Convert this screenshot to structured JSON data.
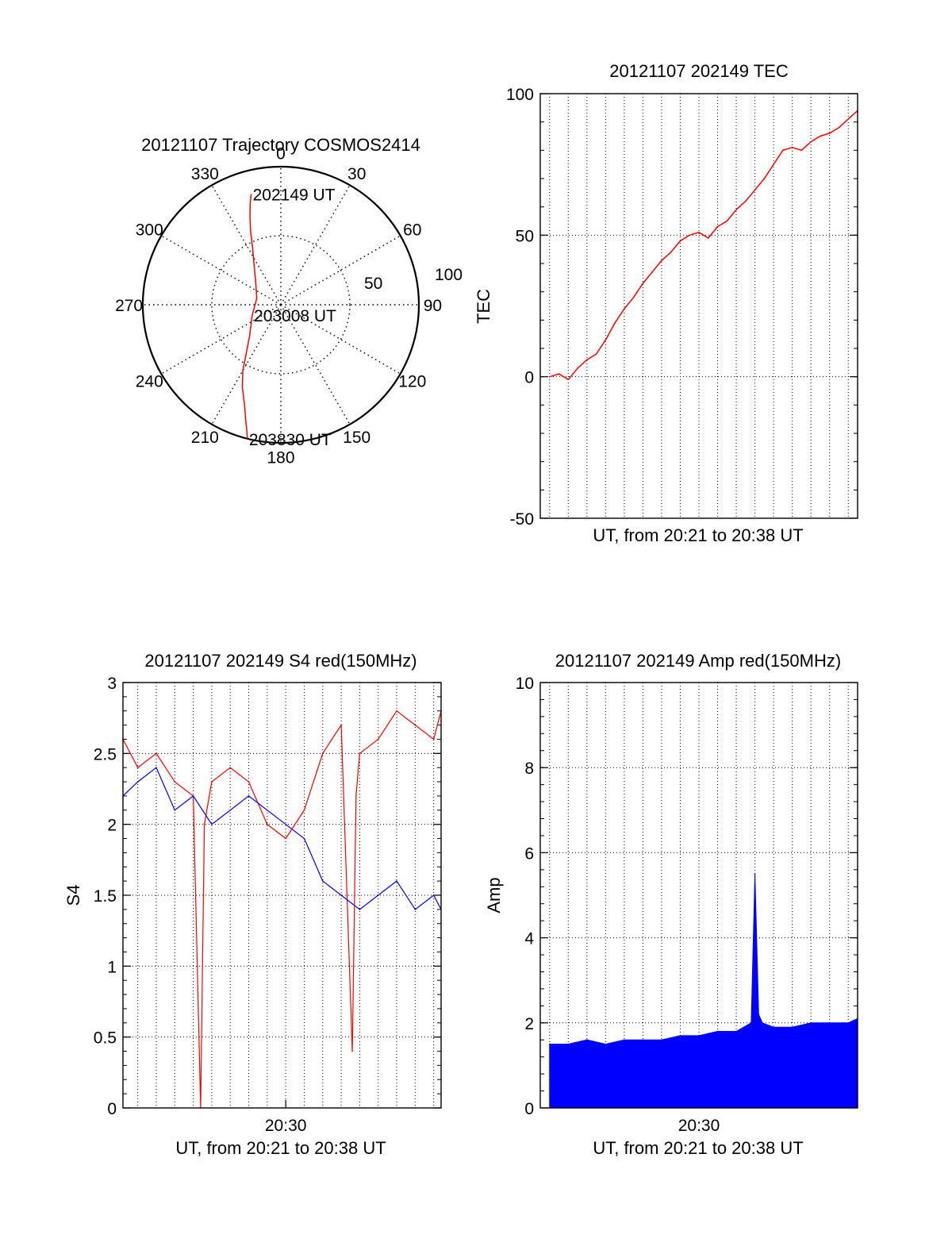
{
  "colors": {
    "red": "#ff0000",
    "blue": "#0000ff",
    "axis": "#000000",
    "grid": "#000000"
  },
  "chart_data": [
    {
      "id": "trajectory",
      "type": "polar",
      "title": "20121107 Trajectory COSMOS2414",
      "angle_labels": [
        "0",
        "30",
        "60",
        "90",
        "120",
        "150",
        "180",
        "210",
        "240",
        "270",
        "300",
        "330"
      ],
      "radial_labels": [
        "50",
        "100"
      ],
      "radial_ticks": [
        50,
        100
      ],
      "r_max": 100,
      "track": {
        "azimuth_deg": [
          -15,
          -17,
          -19.5,
          -22.5,
          -26,
          -32,
          -45,
          -75,
          -110,
          -135,
          -145,
          -150,
          -155,
          -160,
          -163,
          -165,
          -166
        ],
        "radius": [
          83,
          76,
          67,
          57,
          47,
          37,
          26,
          18,
          22,
          32,
          44,
          55,
          66,
          77,
          87,
          95,
          100
        ]
      },
      "annotations": [
        {
          "text": "202149 UT",
          "azimuth_deg": -15,
          "radius": 83
        },
        {
          "text": "203008 UT",
          "azimuth_deg": -110,
          "radius": 22
        },
        {
          "text": "203830 UT",
          "azimuth_deg": -166,
          "radius": 100
        }
      ]
    },
    {
      "id": "tec",
      "type": "line",
      "title": "20121107 202149 TEC",
      "xlabel": "UT, from 20:21 to 20:38 UT",
      "ylabel": "TEC",
      "ylim": [
        -50,
        100
      ],
      "yticks": [
        "-50",
        "0",
        "50",
        "100"
      ],
      "xlim_min": [
        21.5,
        38.5
      ],
      "x_gridlines_min": [
        22,
        23,
        24,
        25,
        26,
        27,
        28,
        29,
        30,
        31,
        32,
        33,
        34,
        35,
        36,
        37,
        38
      ],
      "grid": true,
      "series": [
        {
          "color": "#ff0000",
          "x_min": [
            22.0,
            22.5,
            23.0,
            23.5,
            24.0,
            24.5,
            25.0,
            25.5,
            26.0,
            26.5,
            27.0,
            27.5,
            28.0,
            28.5,
            29.0,
            29.5,
            30.0,
            30.5,
            31.0,
            31.5,
            32.0,
            32.5,
            33.0,
            33.5,
            34.0,
            34.5,
            35.0,
            35.5,
            36.0,
            36.5,
            37.0,
            37.5,
            38.0,
            38.5
          ],
          "y": [
            0,
            1,
            -1,
            3,
            6,
            8,
            13,
            19,
            24,
            28,
            33,
            37,
            41,
            44,
            48,
            50,
            51,
            49,
            53,
            55,
            59,
            62,
            66,
            70,
            75,
            80,
            81,
            80,
            83,
            85,
            86,
            88,
            91,
            94
          ]
        }
      ]
    },
    {
      "id": "s4",
      "type": "line",
      "title": "20121107 202149 S4 red(150MHz)",
      "xlabel": "UT, from 20:21 to 20:38 UT",
      "ylabel": "S4",
      "ylim": [
        0,
        3
      ],
      "yticks": [
        "0",
        "0.5",
        "1",
        "1.5",
        "2",
        "2.5",
        "3"
      ],
      "xlim_min": [
        21.2,
        38.4
      ],
      "xtick_label": "20:30",
      "xtick_min": 30,
      "x_gridlines_min": [
        22,
        23,
        24,
        25,
        26,
        27,
        28,
        29,
        30,
        31,
        32,
        33,
        34,
        35,
        36,
        37,
        38
      ],
      "grid": true,
      "series": [
        {
          "color": "#ff0000",
          "x_min": [
            21.2,
            22.0,
            23.0,
            24.0,
            25.0,
            25.4,
            25.6,
            26.0,
            27.0,
            28.0,
            29.0,
            30.0,
            31.0,
            32.0,
            33.0,
            33.6,
            33.8,
            34.0,
            35.0,
            36.0,
            37.0,
            38.0,
            38.4
          ],
          "y": [
            2.6,
            2.4,
            2.5,
            2.3,
            2.2,
            0.0,
            2.0,
            2.3,
            2.4,
            2.3,
            2.0,
            1.9,
            2.1,
            2.5,
            2.7,
            0.4,
            2.2,
            2.5,
            2.6,
            2.8,
            2.7,
            2.6,
            2.8
          ]
        },
        {
          "color": "#0000ff",
          "x_min": [
            21.2,
            22.0,
            23.0,
            24.0,
            25.0,
            26.0,
            27.0,
            28.0,
            29.0,
            30.0,
            31.0,
            32.0,
            33.0,
            34.0,
            35.0,
            36.0,
            37.0,
            38.0,
            38.4
          ],
          "y": [
            2.2,
            2.3,
            2.4,
            2.1,
            2.2,
            2.0,
            2.1,
            2.2,
            2.1,
            2.0,
            1.9,
            1.6,
            1.5,
            1.4,
            1.5,
            1.6,
            1.4,
            1.5,
            1.4
          ]
        }
      ]
    },
    {
      "id": "amp",
      "type": "area",
      "title": "20121107 202149 Amp red(150MHz)",
      "xlabel": "UT, from 20:21 to 20:38 UT",
      "ylabel": "Amp",
      "ylim": [
        0,
        10
      ],
      "yticks": [
        "0",
        "2",
        "4",
        "6",
        "8",
        "10"
      ],
      "xlim_min": [
        21.5,
        38.5
      ],
      "xtick_label": "20:30",
      "xtick_min": 30,
      "x_gridlines_min": [
        22,
        23,
        24,
        25,
        26,
        27,
        28,
        29,
        30,
        31,
        32,
        33,
        34,
        35,
        36,
        37,
        38
      ],
      "grid": true,
      "series": [
        {
          "color": "#0000ff",
          "x_min": [
            22.0,
            23.0,
            24.0,
            25.0,
            26.0,
            27.0,
            28.0,
            29.0,
            30.0,
            31.0,
            32.0,
            32.8,
            33.0,
            33.2,
            33.4,
            34.0,
            35.0,
            36.0,
            37.0,
            38.0,
            38.5
          ],
          "y": [
            1.5,
            1.5,
            1.6,
            1.5,
            1.6,
            1.6,
            1.6,
            1.7,
            1.7,
            1.8,
            1.8,
            2.0,
            5.5,
            2.2,
            2.0,
            1.9,
            1.9,
            2.0,
            2.0,
            2.0,
            2.1
          ]
        }
      ]
    }
  ]
}
